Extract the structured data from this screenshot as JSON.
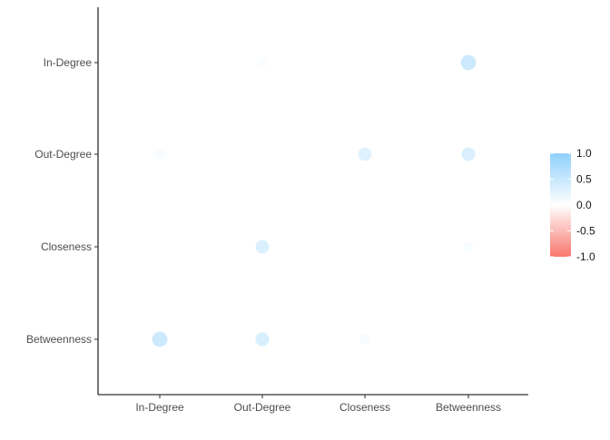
{
  "chart_data": {
    "type": "scatter",
    "subtype": "correlation-bubble-matrix",
    "title": "",
    "xlabel": "",
    "ylabel": "",
    "x_categories": [
      "In-Degree",
      "Out-Degree",
      "Closeness",
      "Betweenness"
    ],
    "y_categories": [
      "In-Degree",
      "Out-Degree",
      "Closeness",
      "Betweenness"
    ],
    "points": [
      {
        "x": "Out-Degree",
        "y": "In-Degree",
        "value": 0.05
      },
      {
        "x": "Betweenness",
        "y": "In-Degree",
        "value": 0.45
      },
      {
        "x": "In-Degree",
        "y": "Out-Degree",
        "value": 0.06
      },
      {
        "x": "Closeness",
        "y": "Out-Degree",
        "value": 0.3
      },
      {
        "x": "Betweenness",
        "y": "Out-Degree",
        "value": 0.33
      },
      {
        "x": "Out-Degree",
        "y": "Closeness",
        "value": 0.32
      },
      {
        "x": "Betweenness",
        "y": "Closeness",
        "value": 0.07
      },
      {
        "x": "In-Degree",
        "y": "Betweenness",
        "value": 0.45
      },
      {
        "x": "Out-Degree",
        "y": "Betweenness",
        "value": 0.35
      },
      {
        "x": "Closeness",
        "y": "Betweenness",
        "value": 0.08
      }
    ],
    "legend": {
      "placement": "right",
      "range": [
        -1,
        1
      ],
      "tick_labels": [
        "1.0",
        "0.5",
        "0.0",
        "-0.5",
        "-1.0"
      ],
      "tick_values": [
        1,
        0.5,
        0,
        -0.5,
        -1
      ],
      "low_color": "#F8766D",
      "mid_color": "#FFFFFF",
      "high_color": "#8FD0FB"
    },
    "grid": false
  }
}
